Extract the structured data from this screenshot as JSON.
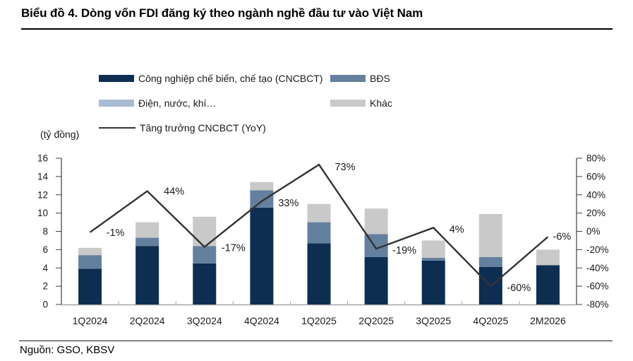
{
  "header": {
    "title": "Biểu đồ 4. Dòng vốn FDI đăng ký theo ngành nghề đầu tư vào Việt Nam"
  },
  "unit_label": "(tỷ đồng)",
  "source": {
    "label": "Nguồn: GSO, KBSV"
  },
  "chart_data": {
    "type": "bar",
    "subtype": "stacked-bar-with-line",
    "categories": [
      "1Q2024",
      "2Q2024",
      "3Q2024",
      "4Q2024",
      "1Q2025",
      "2Q2025",
      "3Q2025",
      "4Q2025",
      "2M2026"
    ],
    "series": [
      {
        "name": "Công nghiệp chế biến, chế tạo (CNCBCT)",
        "type": "bar",
        "color": "#0d2e51",
        "values": [
          3.9,
          6.4,
          4.5,
          10.6,
          6.7,
          5.2,
          4.8,
          4.1,
          4.3
        ]
      },
      {
        "name": "BĐS",
        "type": "bar",
        "color": "#64809f",
        "values": [
          1.5,
          0.9,
          1.9,
          1.9,
          2.3,
          2.5,
          0.3,
          1.1,
          0
        ]
      },
      {
        "name": "Điện, nước, khí…",
        "type": "bar",
        "color": "#a9bcd3",
        "values": [
          0,
          0,
          0,
          0,
          0,
          0,
          0,
          0,
          0
        ]
      },
      {
        "name": "Khác",
        "type": "bar",
        "color": "#c9c9c9",
        "values": [
          0.8,
          1.7,
          3.2,
          0.9,
          2.0,
          2.8,
          1.9,
          4.7,
          1.7
        ]
      },
      {
        "name": "Tăng trưởng CNCBCT (YoY)",
        "type": "line",
        "axis": "right",
        "color": "#333333",
        "values": [
          -1,
          44,
          -17,
          33,
          73,
          -19,
          4,
          -60,
          -6
        ],
        "labels": [
          "-1%",
          "44%",
          "-17%",
          "33%",
          "73%",
          "-19%",
          "4%",
          "-60%",
          "-6%"
        ]
      }
    ],
    "left_axis": {
      "min": 0,
      "max": 16,
      "ticks": [
        0,
        2,
        4,
        6,
        8,
        10,
        12,
        14,
        16
      ],
      "title": "(tỷ đồng)"
    },
    "right_axis": {
      "min": -80,
      "max": 80,
      "tick_values": [
        -80,
        -60,
        -40,
        -20,
        0,
        20,
        40,
        60,
        80
      ],
      "tick_labels": [
        "-80%",
        "-60%",
        "-40%",
        "-20%",
        "0%",
        "20%",
        "40%",
        "60%",
        "80%"
      ]
    },
    "grid": false,
    "legend_position": "top",
    "axis_color": "#404040",
    "baseline_color": "#a6a6a6",
    "text_color": "#1a1a1a"
  }
}
